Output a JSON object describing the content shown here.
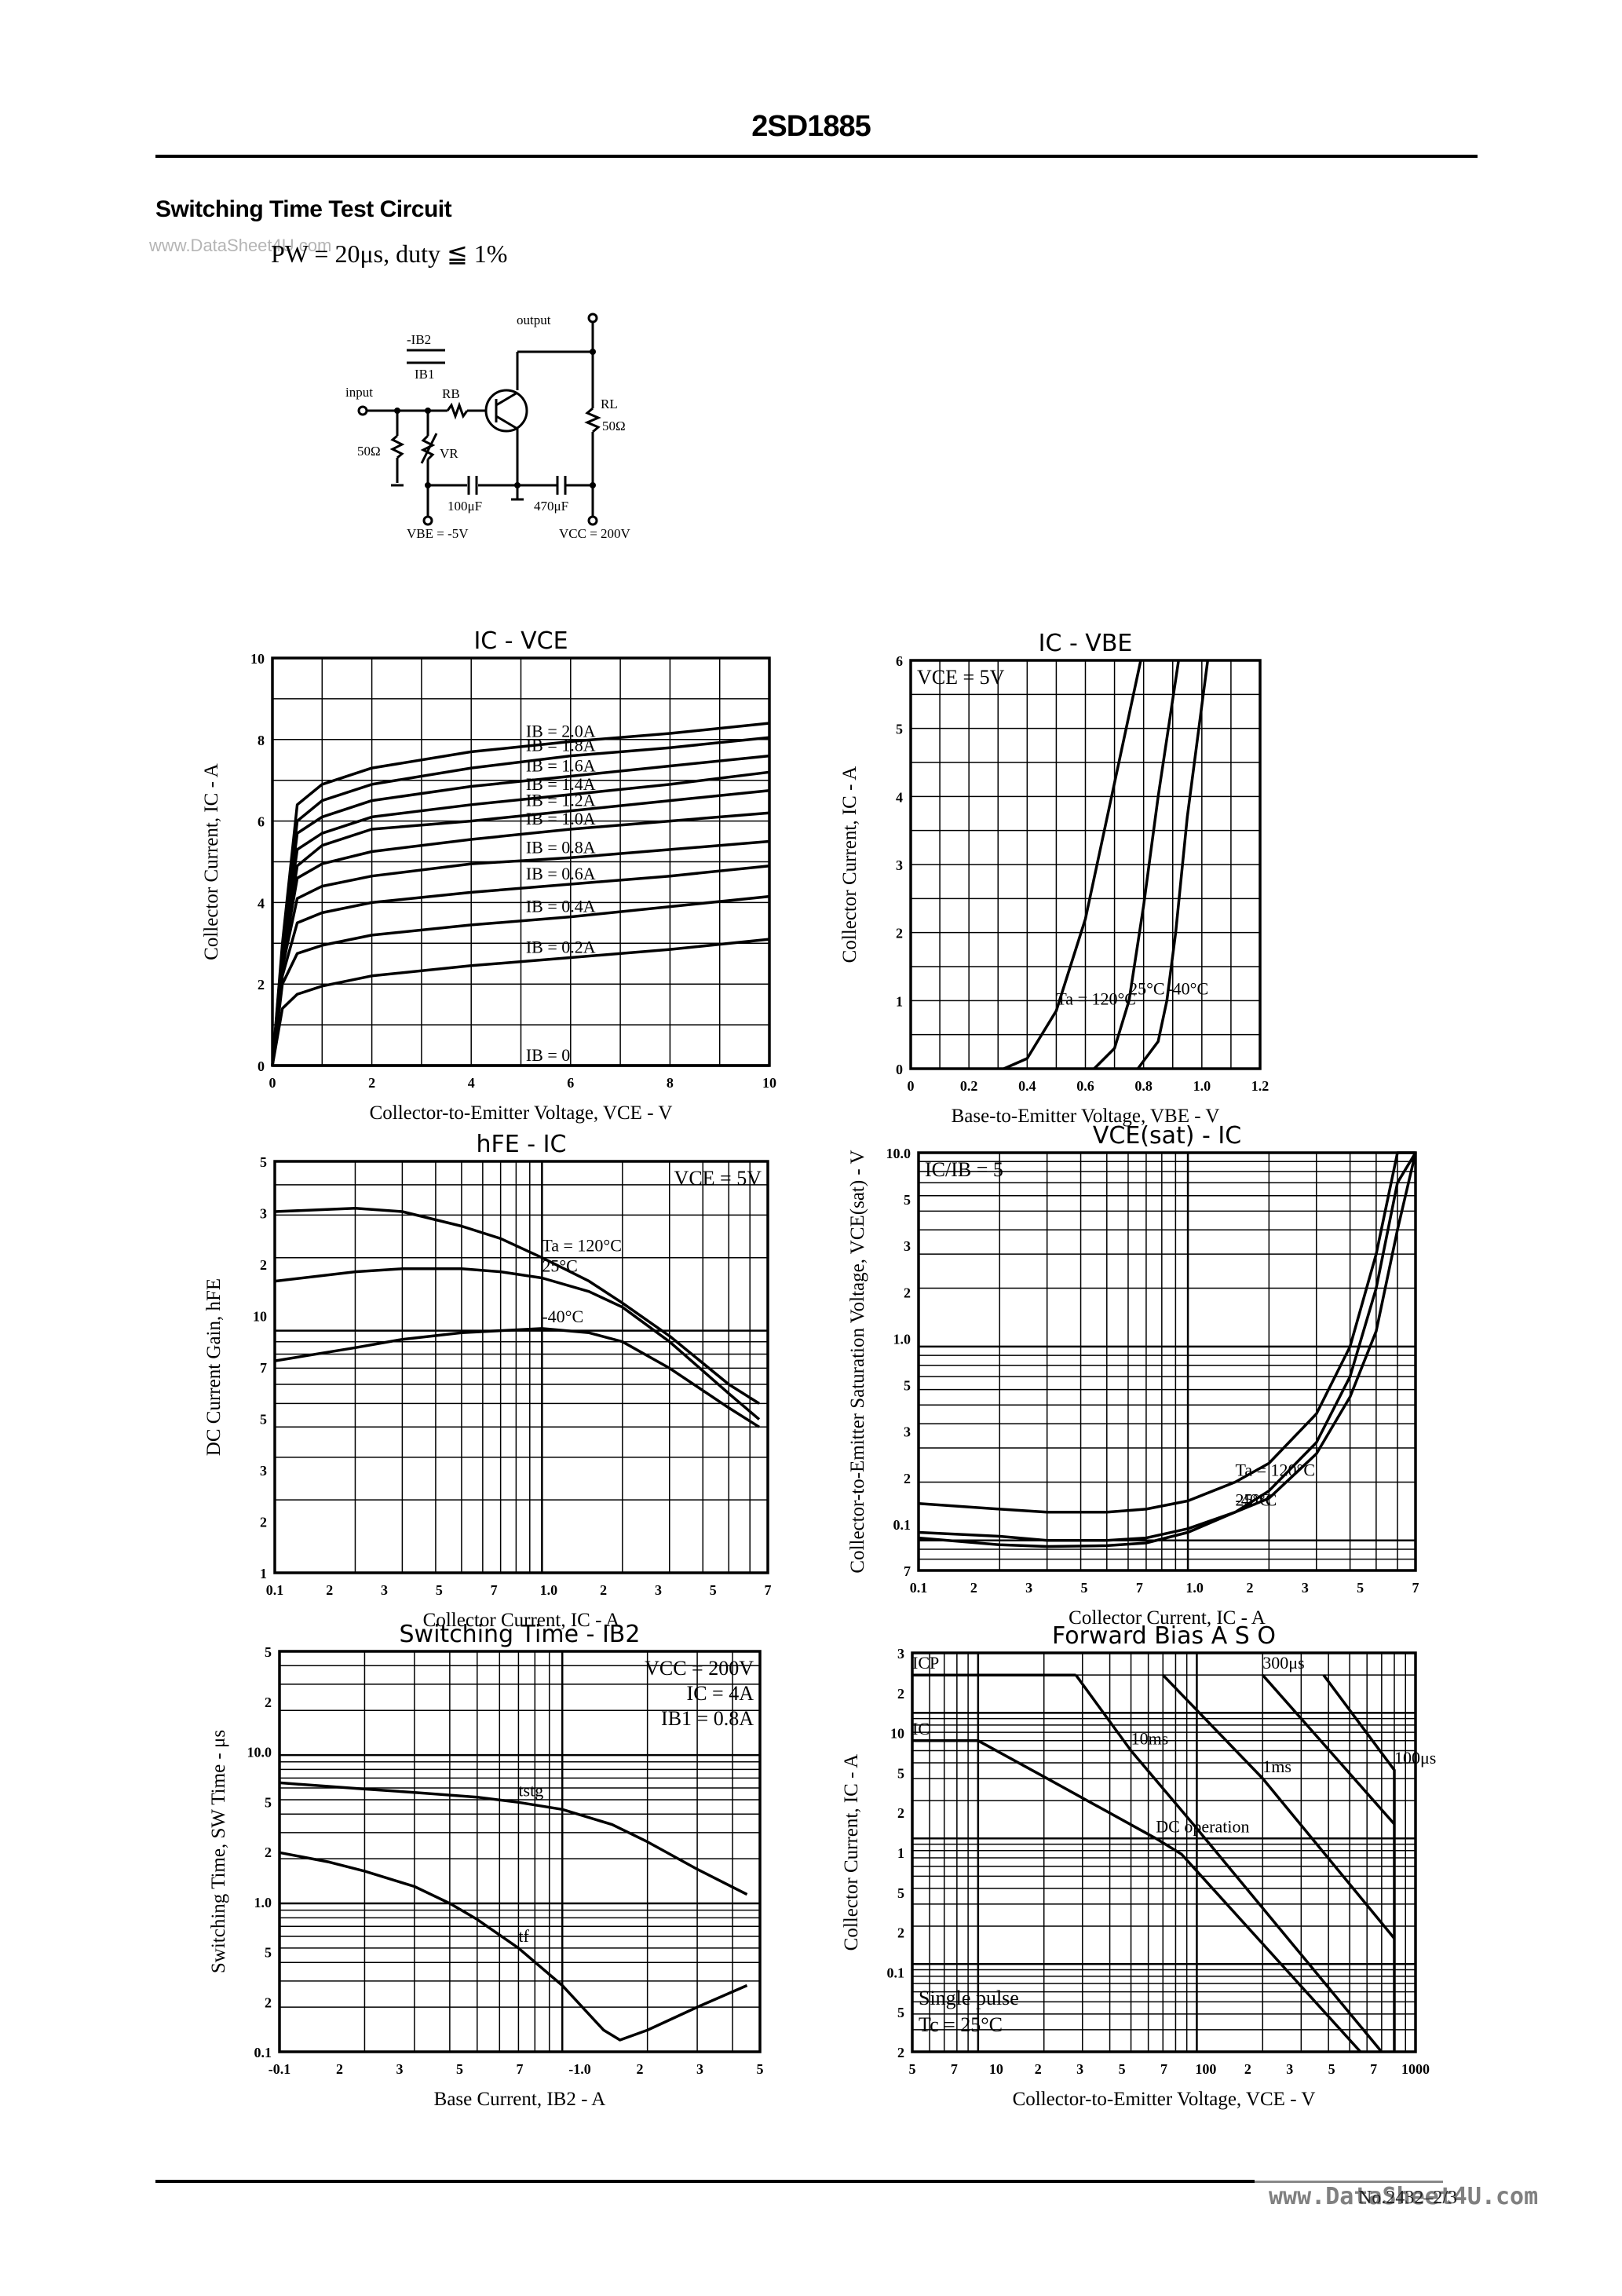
{
  "header": {
    "part_number": "2SD1885"
  },
  "section": {
    "title": "Switching Time Test Circuit",
    "watermark": "www.DataSheet4U.com",
    "pulse_condition": "PW = 20μs, duty ≦ 1%"
  },
  "circuit": {
    "labels": {
      "output": "output",
      "input": "input",
      "ib2": "-IB2",
      "ib1": "IB1",
      "rb": "RB",
      "rl": "RL",
      "rl_value": "50Ω",
      "r_in": "50Ω",
      "vr": "VR",
      "c1": "100μF",
      "c2": "470μF",
      "vbe": "VBE = -5V",
      "vcc": "VCC = 200V"
    }
  },
  "chart_data": [
    {
      "id": "ic_vce",
      "type": "line",
      "title": "IC - VCE",
      "xlabel": "Collector-to-Emitter Voltage, VCE - V",
      "ylabel": "Collector Current, IC - A",
      "xlim": [
        0,
        10
      ],
      "ylim": [
        0,
        10
      ],
      "xticks": [
        "0",
        "2",
        "4",
        "6",
        "8",
        "10"
      ],
      "yticks": [
        "0",
        "2",
        "4",
        "6",
        "8",
        "10"
      ],
      "grid": true,
      "x": [
        0,
        0.2,
        0.5,
        1,
        2,
        4,
        6,
        8,
        10
      ],
      "series": [
        {
          "name": "IB = 2.0A",
          "values": [
            0,
            3.0,
            6.4,
            6.9,
            7.3,
            7.7,
            7.95,
            8.15,
            8.4
          ]
        },
        {
          "name": "IB = 1.8A",
          "values": [
            0,
            2.9,
            6.0,
            6.5,
            6.9,
            7.3,
            7.6,
            7.8,
            8.05
          ]
        },
        {
          "name": "IB = 1.6A",
          "values": [
            0,
            2.8,
            5.7,
            6.1,
            6.5,
            6.85,
            7.1,
            7.35,
            7.6
          ]
        },
        {
          "name": "IB = 1.4A",
          "values": [
            0,
            2.7,
            5.3,
            5.7,
            6.1,
            6.4,
            6.65,
            6.9,
            7.2
          ]
        },
        {
          "name": "IB = 1.2A",
          "values": [
            0,
            2.6,
            4.9,
            5.4,
            5.8,
            6.0,
            6.25,
            6.5,
            6.75
          ]
        },
        {
          "name": "IB = 1.0A",
          "values": [
            0,
            2.5,
            4.6,
            4.95,
            5.25,
            5.55,
            5.8,
            6.0,
            6.2
          ]
        },
        {
          "name": "IB = 0.8A",
          "values": [
            0,
            2.4,
            4.1,
            4.4,
            4.65,
            4.95,
            5.1,
            5.3,
            5.5
          ]
        },
        {
          "name": "IB = 0.6A",
          "values": [
            0,
            2.2,
            3.5,
            3.75,
            4.0,
            4.25,
            4.45,
            4.65,
            4.9
          ]
        },
        {
          "name": "IB = 0.4A",
          "values": [
            0,
            2.0,
            2.75,
            2.95,
            3.2,
            3.45,
            3.65,
            3.9,
            4.15
          ]
        },
        {
          "name": "IB = 0.2A",
          "values": [
            0,
            1.4,
            1.75,
            1.95,
            2.2,
            2.45,
            2.65,
            2.85,
            3.1
          ]
        },
        {
          "name": "IB = 0",
          "values": [
            0,
            0,
            0,
            0,
            0,
            0,
            0,
            0,
            0
          ]
        }
      ],
      "annotations": [
        "IB=2.0A",
        "1.8A",
        "1.6A",
        "1.4A",
        "1.2A",
        "1.0A",
        "0.8A",
        "0.6A",
        "0.4A",
        "0.2A",
        "IB=0"
      ]
    },
    {
      "id": "ic_vbe",
      "type": "line",
      "title": "IC - VBE",
      "xlabel": "Base-to-Emitter Voltage, VBE - V",
      "ylabel": "Collector Current, IC - A",
      "xlim": [
        0,
        1.2
      ],
      "ylim": [
        0,
        6
      ],
      "xticks": [
        "0",
        "0.2",
        "0.4",
        "0.6",
        "0.8",
        "1.0",
        "1.2"
      ],
      "yticks": [
        "0",
        "1",
        "2",
        "3",
        "4",
        "5",
        "6"
      ],
      "grid": true,
      "condition": "VCE = 5V",
      "series": [
        {
          "name": "Ta = 120°C",
          "x": [
            0.32,
            0.4,
            0.5,
            0.6,
            0.7,
            0.79
          ],
          "values": [
            0,
            0.15,
            0.85,
            2.2,
            4.2,
            6.0
          ]
        },
        {
          "name": "25°C",
          "x": [
            0.63,
            0.7,
            0.75,
            0.8,
            0.85,
            0.92
          ],
          "values": [
            0,
            0.3,
            1.0,
            2.4,
            4.0,
            6.0
          ]
        },
        {
          "name": "-40°C",
          "x": [
            0.78,
            0.85,
            0.88,
            0.91,
            0.95,
            1.02
          ],
          "values": [
            0,
            0.4,
            1.0,
            2.0,
            3.7,
            6.0
          ]
        }
      ]
    },
    {
      "id": "hfe_ic",
      "type": "line",
      "title": "hFE - IC",
      "xlabel": "Collector Current, IC - A",
      "ylabel": "DC Current Gain, hFE",
      "xscale": "log",
      "yscale": "log",
      "xlim": [
        0.1,
        7
      ],
      "ylim": [
        1,
        50
      ],
      "xticks": [
        "0.1",
        "2",
        "3",
        "5",
        "7",
        "1.0",
        "2",
        "3",
        "5",
        "7"
      ],
      "yticks": [
        "1",
        "2",
        "3",
        "5",
        "7",
        "10",
        "2",
        "3",
        "5"
      ],
      "grid": true,
      "condition": "VCE = 5V",
      "x": [
        0.1,
        0.2,
        0.3,
        0.5,
        0.7,
        1.0,
        1.5,
        2.0,
        3.0,
        5.0,
        6.5
      ],
      "series": [
        {
          "name": "Ta = 120°C",
          "values": [
            31,
            32,
            31,
            27,
            24,
            20,
            16,
            13,
            9.5,
            6.0,
            5.0
          ]
        },
        {
          "name": "25°C",
          "values": [
            16,
            17.5,
            18,
            18,
            17.5,
            16.5,
            14.5,
            12.5,
            9.0,
            5.5,
            4.3
          ]
        },
        {
          "name": "-40°C",
          "values": [
            7.5,
            8.5,
            9.2,
            9.8,
            10,
            10.2,
            9.8,
            9.0,
            7.0,
            4.8,
            4.0
          ]
        }
      ]
    },
    {
      "id": "vcesat_ic",
      "type": "line",
      "title": "VCE(sat) - IC",
      "xlabel": "Collector Current, IC - A",
      "ylabel": "Collector-to-Emitter Saturation Voltage, VCE(sat) - V",
      "xscale": "log",
      "yscale": "log",
      "xlim": [
        0.1,
        7
      ],
      "ylim": [
        0.07,
        10
      ],
      "xticks": [
        "0.1",
        "2",
        "3",
        "5",
        "7",
        "1.0",
        "2",
        "3",
        "5",
        "7"
      ],
      "yticks": [
        "7",
        "0.1",
        "2",
        "3",
        "5",
        "1.0",
        "2",
        "3",
        "5",
        "10.0"
      ],
      "grid": true,
      "condition": "IC/IB = 5",
      "x": [
        0.1,
        0.2,
        0.3,
        0.5,
        0.7,
        1.0,
        1.5,
        2.0,
        3.0,
        4.0,
        5.0,
        6.0,
        7.0
      ],
      "series": [
        {
          "name": "Ta = 120°C",
          "values": [
            0.155,
            0.145,
            0.14,
            0.14,
            0.145,
            0.16,
            0.2,
            0.25,
            0.45,
            1.0,
            3.0,
            10,
            10
          ]
        },
        {
          "name": "25°C",
          "values": [
            0.11,
            0.105,
            0.1,
            0.1,
            0.103,
            0.115,
            0.14,
            0.18,
            0.32,
            0.7,
            2.0,
            7.0,
            10
          ]
        },
        {
          "name": "-40°C",
          "values": [
            0.103,
            0.095,
            0.093,
            0.094,
            0.097,
            0.11,
            0.14,
            0.165,
            0.28,
            0.55,
            1.2,
            4.0,
            10
          ]
        }
      ]
    },
    {
      "id": "sw_time_ib2",
      "type": "line",
      "title": "Switching Time - IB2",
      "xlabel": "Base Current, IB2 - A",
      "ylabel": "Switching Time, SW Time - μs",
      "xscale": "log",
      "yscale": "log",
      "xlim": [
        -0.1,
        -5
      ],
      "ylim": [
        0.1,
        50
      ],
      "xticks": [
        "-0.1",
        "2",
        "3",
        "5",
        "7",
        "-1.0",
        "2",
        "3",
        "5"
      ],
      "yticks": [
        "0.1",
        "2",
        "5",
        "1.0",
        "2",
        "5",
        "10.0",
        "2",
        "5"
      ],
      "grid": true,
      "condition": [
        "VCC = 200V",
        "IC = 4A",
        "IB1 = 0.8A"
      ],
      "series": [
        {
          "name": "tstg",
          "x": [
            -0.1,
            -0.2,
            -0.3,
            -0.5,
            -0.7,
            -1.0,
            -1.5,
            -2.0,
            -3.0,
            -4.5
          ],
          "values": [
            6.5,
            5.9,
            5.6,
            5.2,
            4.8,
            4.3,
            3.4,
            2.6,
            1.7,
            1.15
          ]
        },
        {
          "name": "tf",
          "x": [
            -0.1,
            -0.15,
            -0.2,
            -0.3,
            -0.4,
            -0.5,
            -0.7,
            -1.0,
            -1.4,
            -1.6,
            -2.0,
            -3.0,
            -4.5
          ],
          "values": [
            2.2,
            1.9,
            1.65,
            1.3,
            1.0,
            0.78,
            0.5,
            0.28,
            0.14,
            0.12,
            0.14,
            0.2,
            0.28
          ]
        }
      ]
    },
    {
      "id": "forward_bias_aso",
      "type": "line",
      "title": "Forward Bias A S O",
      "xlabel": "Collector-to-Emitter Voltage, VCE - V",
      "ylabel": "Collector Current, IC - A",
      "xscale": "log",
      "yscale": "log",
      "xlim": [
        5,
        1000
      ],
      "ylim": [
        0.02,
        30
      ],
      "xticks": [
        "5",
        "7",
        "10",
        "2",
        "3",
        "5",
        "7",
        "100",
        "2",
        "3",
        "5",
        "7",
        "1000"
      ],
      "yticks": [
        "2",
        "5",
        "0.1",
        "2",
        "5",
        "1",
        "2",
        "5",
        "10",
        "2",
        "3"
      ],
      "grid": true,
      "condition": [
        "Single pulse",
        "Tc = 25°C"
      ],
      "series": [
        {
          "name": "ICP",
          "x": [
            5,
            28
          ],
          "values": [
            20,
            20
          ]
        },
        {
          "name": "IC",
          "x": [
            5,
            10
          ],
          "values": [
            6,
            6
          ]
        },
        {
          "name": "DC operation",
          "x": [
            10,
            20,
            65,
            85,
            560
          ],
          "values": [
            6,
            3.1,
            1.0,
            0.75,
            0.02
          ]
        },
        {
          "name": "10ms",
          "x": [
            28,
            50,
            100,
            700
          ],
          "values": [
            20,
            5,
            1.2,
            0.02
          ]
        },
        {
          "name": "1ms",
          "x": [
            70,
            200,
            800
          ],
          "values": [
            20,
            3,
            0.16
          ]
        },
        {
          "name": "300μs",
          "x": [
            200,
            800
          ],
          "values": [
            20,
            1.3
          ]
        },
        {
          "name": "100μs",
          "x": [
            380,
            800,
            800
          ],
          "values": [
            20,
            3.5,
            0.02
          ]
        }
      ]
    }
  ],
  "footer": {
    "page": "No.2432–2/3",
    "watermark": "www.DataSheet4U.com"
  }
}
